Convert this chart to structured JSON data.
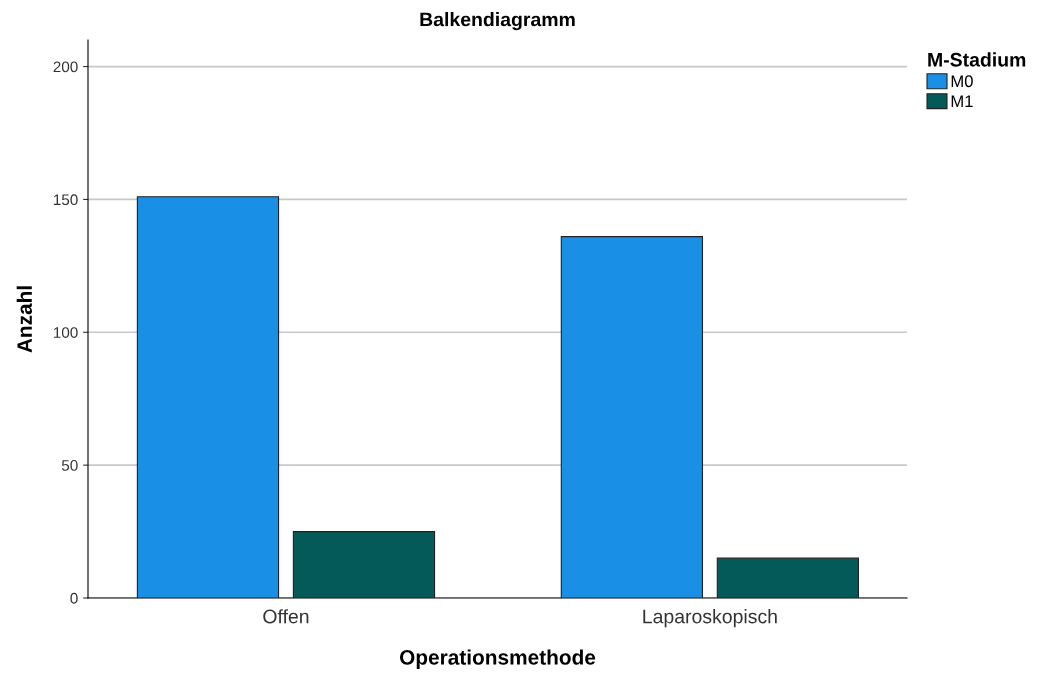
{
  "chart_data": {
    "type": "bar",
    "title": "Balkendiagramm",
    "xlabel": "Operationsmethode",
    "ylabel": "Anzahl",
    "legend_title": "M-Stadium",
    "categories": [
      "Offen",
      "Laparoskopisch"
    ],
    "series": [
      {
        "name": "M0",
        "color": "#1a8fe6",
        "values": [
          151,
          136
        ]
      },
      {
        "name": "M1",
        "color": "#035a58",
        "values": [
          25,
          15
        ]
      }
    ],
    "ylim": [
      0,
      210
    ],
    "yticks": [
      0,
      50,
      100,
      150,
      200
    ],
    "grid": "y",
    "legend": "top right"
  }
}
